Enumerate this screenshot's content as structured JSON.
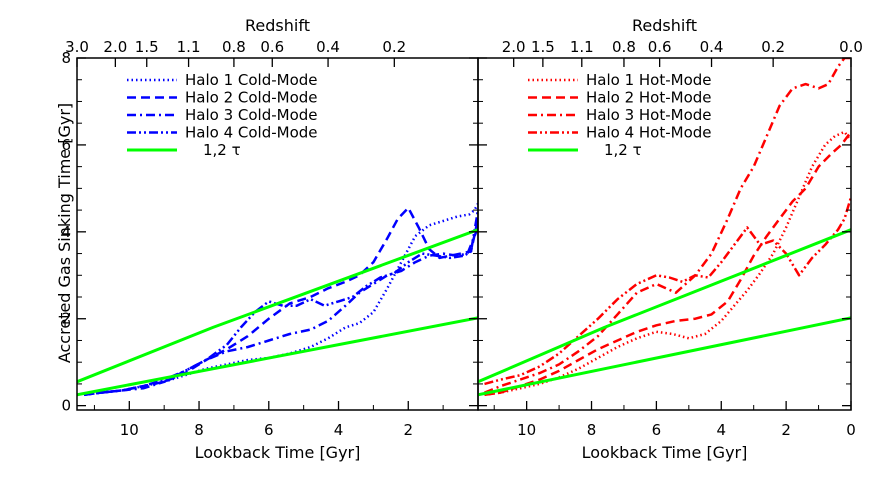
{
  "figure": {
    "ylabel": "Accreted Gas Sinking Time [Gyr]",
    "xlabel": "Lookback Time [Gyr]",
    "toplabel": "Redshift"
  },
  "chart_data": [
    {
      "type": "line",
      "panel": "left",
      "title": "",
      "xlabel": "Lookback Time [Gyr]",
      "ylabel": "Accreted Gas Sinking Time [Gyr]",
      "top_axis_label": "Redshift",
      "xlim": [
        11.5,
        0
      ],
      "ylim": [
        -0.1,
        8.0
      ],
      "x_ticks": [
        10,
        8,
        6,
        4,
        2
      ],
      "x_tick_labels": [
        "10",
        "8",
        "6",
        "4",
        "2"
      ],
      "y_ticks": [
        0,
        2,
        4,
        6,
        8
      ],
      "y_tick_labels": [
        "0",
        "2",
        "4",
        "6",
        "8"
      ],
      "top_ticks": [
        {
          "label": "3.0",
          "x": 11.5
        },
        {
          "label": "2.0",
          "x": 10.4
        },
        {
          "label": "1.5",
          "x": 9.5
        },
        {
          "label": "1.1",
          "x": 8.3
        },
        {
          "label": "0.8",
          "x": 7.0
        },
        {
          "label": "0.6",
          "x": 5.9
        },
        {
          "label": "0.4",
          "x": 4.3
        },
        {
          "label": "0.2",
          "x": 2.4
        }
      ],
      "legend_position": "top-left",
      "grid": false,
      "series": [
        {
          "name": "Halo 1 Cold-Mode",
          "color": "#0000ff",
          "dash": "dotted",
          "x": [
            11.3,
            10.8,
            10.2,
            9.6,
            9.0,
            8.4,
            7.8,
            7.2,
            6.6,
            6.0,
            5.4,
            4.8,
            4.3,
            3.8,
            3.4,
            3.0,
            2.6,
            2.2,
            1.8,
            1.4,
            1.0,
            0.6,
            0.25,
            0.1,
            0.0
          ],
          "y": [
            0.25,
            0.3,
            0.35,
            0.45,
            0.55,
            0.7,
            0.85,
            0.95,
            1.05,
            1.1,
            1.2,
            1.35,
            1.55,
            1.8,
            1.9,
            2.15,
            2.7,
            3.3,
            3.9,
            4.15,
            4.25,
            4.35,
            4.4,
            4.5,
            4.65
          ]
        },
        {
          "name": "Halo 2 Cold-Mode",
          "color": "#0000ff",
          "dash": "dashed",
          "x": [
            11.3,
            10.8,
            10.2,
            9.6,
            9.0,
            8.4,
            7.8,
            7.2,
            6.6,
            6.0,
            5.4,
            4.8,
            4.3,
            3.8,
            3.4,
            3.0,
            2.6,
            2.3,
            2.0,
            1.7,
            1.4,
            1.1,
            0.8,
            0.5,
            0.2,
            0.0
          ],
          "y": [
            0.25,
            0.3,
            0.35,
            0.45,
            0.55,
            0.75,
            1.05,
            1.3,
            1.6,
            2.0,
            2.35,
            2.5,
            2.7,
            2.85,
            3.0,
            3.3,
            3.85,
            4.3,
            4.55,
            4.1,
            3.6,
            3.4,
            3.45,
            3.5,
            3.55,
            4.3
          ]
        },
        {
          "name": "Halo 3 Cold-Mode",
          "color": "#0000ff",
          "dash": "dashdot",
          "x": [
            11.3,
            10.8,
            10.2,
            9.6,
            9.0,
            8.4,
            7.8,
            7.2,
            6.6,
            6.0,
            5.4,
            4.8,
            4.3,
            3.8,
            3.4,
            3.0,
            2.6,
            2.2,
            1.8,
            1.4,
            1.0,
            0.6,
            0.3,
            0.1,
            0.0
          ],
          "y": [
            0.25,
            0.3,
            0.35,
            0.4,
            0.55,
            0.8,
            1.05,
            1.25,
            1.35,
            1.5,
            1.65,
            1.75,
            1.95,
            2.3,
            2.6,
            2.8,
            3.0,
            3.1,
            3.3,
            3.45,
            3.5,
            3.45,
            3.5,
            3.9,
            4.1
          ]
        },
        {
          "name": "Halo 4 Cold-Mode",
          "color": "#0000ff",
          "dash": "dashdotdot",
          "x": [
            11.3,
            10.8,
            10.2,
            9.6,
            9.0,
            8.4,
            7.8,
            7.2,
            6.8,
            6.4,
            6.0,
            5.6,
            5.2,
            4.8,
            4.4,
            4.0,
            3.6,
            3.2,
            2.8,
            2.4,
            2.0,
            1.6,
            1.2,
            0.8,
            0.4,
            0.2,
            0.0
          ],
          "y": [
            0.25,
            0.3,
            0.35,
            0.45,
            0.6,
            0.8,
            1.05,
            1.4,
            1.8,
            2.15,
            2.4,
            2.3,
            2.3,
            2.45,
            2.3,
            2.4,
            2.5,
            2.75,
            2.95,
            3.05,
            3.3,
            3.5,
            3.45,
            3.4,
            3.45,
            3.55,
            4.5
          ]
        },
        {
          "name": "1,2 τ",
          "color": "#00ff00",
          "dash": "solid",
          "x": [
            11.5,
            7.6,
            0.0
          ],
          "y": [
            0.55,
            1.8,
            4.05
          ]
        },
        {
          "name": "",
          "color": "#00ff00",
          "dash": "solid",
          "x": [
            11.5,
            0.0
          ],
          "y": [
            0.25,
            2.02
          ]
        }
      ]
    },
    {
      "type": "line",
      "panel": "right",
      "title": "",
      "xlabel": "Lookback Time [Gyr]",
      "ylabel": "",
      "top_axis_label": "Redshift",
      "xlim": [
        11.5,
        0
      ],
      "ylim": [
        -0.1,
        8.0
      ],
      "x_ticks": [
        10,
        8,
        6,
        4,
        2,
        0
      ],
      "x_tick_labels": [
        "10",
        "8",
        "6",
        "4",
        "2",
        "0"
      ],
      "y_ticks": [
        0,
        2,
        4,
        6,
        8
      ],
      "y_tick_labels": [
        "",
        "",
        "",
        "",
        ""
      ],
      "top_ticks": [
        {
          "label": "2.0",
          "x": 10.4
        },
        {
          "label": "1.5",
          "x": 9.5
        },
        {
          "label": "1.1",
          "x": 8.3
        },
        {
          "label": "0.8",
          "x": 7.0
        },
        {
          "label": "0.6",
          "x": 5.9
        },
        {
          "label": "0.4",
          "x": 4.3
        },
        {
          "label": "0.2",
          "x": 2.4
        },
        {
          "label": "0.0",
          "x": 0.0
        }
      ],
      "legend_position": "top-left",
      "grid": false,
      "series": [
        {
          "name": "Halo 1 Hot-Mode",
          "color": "#ff0000",
          "dash": "dotted",
          "x": [
            11.3,
            10.8,
            10.2,
            9.6,
            9.0,
            8.4,
            7.8,
            7.2,
            6.6,
            6.0,
            5.5,
            5.0,
            4.5,
            4.0,
            3.6,
            3.2,
            2.8,
            2.4,
            2.0,
            1.6,
            1.2,
            0.8,
            0.5,
            0.2,
            0.0
          ],
          "y": [
            0.25,
            0.3,
            0.4,
            0.5,
            0.65,
            0.85,
            1.1,
            1.35,
            1.55,
            1.7,
            1.65,
            1.55,
            1.65,
            1.95,
            2.3,
            2.65,
            3.05,
            3.5,
            4.1,
            4.8,
            5.5,
            6.0,
            6.2,
            6.3,
            6.1
          ]
        },
        {
          "name": "Halo 2 Hot-Mode",
          "color": "#ff0000",
          "dash": "dashed",
          "x": [
            11.3,
            10.8,
            10.2,
            9.6,
            9.0,
            8.4,
            7.8,
            7.2,
            6.6,
            6.0,
            5.4,
            4.8,
            4.3,
            3.8,
            3.4,
            3.0,
            2.6,
            2.2,
            1.8,
            1.4,
            1.0,
            0.6,
            0.3,
            0.0
          ],
          "y": [
            0.25,
            0.3,
            0.45,
            0.6,
            0.8,
            1.05,
            1.3,
            1.5,
            1.7,
            1.85,
            1.95,
            2.0,
            2.1,
            2.4,
            2.9,
            3.45,
            3.9,
            4.3,
            4.7,
            5.0,
            5.5,
            5.8,
            6.0,
            6.3
          ]
        },
        {
          "name": "Halo 3 Hot-Mode",
          "color": "#ff0000",
          "dash": "dashdot",
          "x": [
            11.3,
            10.8,
            10.2,
            9.6,
            9.0,
            8.4,
            7.8,
            7.2,
            6.6,
            6.0,
            5.4,
            4.8,
            4.3,
            3.8,
            3.4,
            3.0,
            2.6,
            2.2,
            1.8,
            1.4,
            1.0,
            0.7,
            0.4,
            0.2,
            0.0
          ],
          "y": [
            0.3,
            0.45,
            0.6,
            0.75,
            0.95,
            1.25,
            1.6,
            2.1,
            2.6,
            2.8,
            2.6,
            3.0,
            3.5,
            4.3,
            5.0,
            5.5,
            6.2,
            6.9,
            7.3,
            7.4,
            7.3,
            7.4,
            7.8,
            8.0,
            8.0
          ]
        },
        {
          "name": "Halo 4 Hot-Mode",
          "color": "#ff0000",
          "dash": "dashdotdot",
          "x": [
            11.3,
            10.8,
            10.2,
            9.6,
            9.0,
            8.4,
            7.8,
            7.2,
            6.6,
            6.0,
            5.6,
            5.2,
            4.8,
            4.4,
            4.0,
            3.6,
            3.2,
            2.8,
            2.4,
            2.0,
            1.6,
            1.2,
            0.8,
            0.4,
            0.2,
            0.0
          ],
          "y": [
            0.5,
            0.6,
            0.7,
            0.9,
            1.2,
            1.6,
            2.0,
            2.45,
            2.8,
            3.0,
            2.95,
            2.85,
            3.0,
            2.95,
            3.3,
            3.7,
            4.1,
            3.7,
            3.8,
            3.5,
            3.0,
            3.4,
            3.7,
            4.05,
            4.3,
            4.8
          ]
        },
        {
          "name": "1,2 τ",
          "color": "#00ff00",
          "dash": "solid",
          "x": [
            11.5,
            7.6,
            0.0
          ],
          "y": [
            0.55,
            1.8,
            4.05
          ]
        },
        {
          "name": "",
          "color": "#00ff00",
          "dash": "solid",
          "x": [
            11.5,
            0.0
          ],
          "y": [
            0.25,
            2.02
          ]
        }
      ]
    }
  ]
}
